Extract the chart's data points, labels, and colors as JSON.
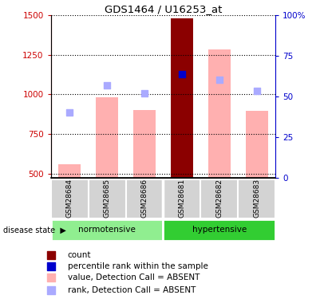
{
  "title": "GDS1464 / U16253_at",
  "samples": [
    "GSM28684",
    "GSM28685",
    "GSM28686",
    "GSM28681",
    "GSM28682",
    "GSM28683"
  ],
  "groups": [
    "normotensive",
    "normotensive",
    "normotensive",
    "hypertensive",
    "hypertensive",
    "hypertensive"
  ],
  "ylim_left": [
    475,
    1500
  ],
  "ylim_right": [
    0,
    100
  ],
  "yticks_left": [
    500,
    750,
    1000,
    1250,
    1500
  ],
  "yticks_right": [
    0,
    25,
    50,
    75,
    100
  ],
  "bar_values": [
    560,
    980,
    900,
    1480,
    1285,
    895
  ],
  "bar_color_absent": "#ffb0b0",
  "bar_color_present": "#8b0000",
  "present_sample_idx": 3,
  "rank_dots_y": [
    885,
    1055,
    1005,
    1130,
    1095,
    1020
  ],
  "rank_dot_color_absent": "#aaaaff",
  "rank_dot_color_present": "#0000cc",
  "rank_dot_size": 40,
  "group_color_norm": "#90ee90",
  "group_color_hyper": "#32cd32",
  "label_color_left": "#cc0000",
  "label_color_right": "#0000cc",
  "legend_labels": [
    "count",
    "percentile rank within the sample",
    "value, Detection Call = ABSENT",
    "rank, Detection Call = ABSENT"
  ],
  "legend_colors": [
    "#8b0000",
    "#0000cc",
    "#ffb0b0",
    "#aaaaff"
  ]
}
